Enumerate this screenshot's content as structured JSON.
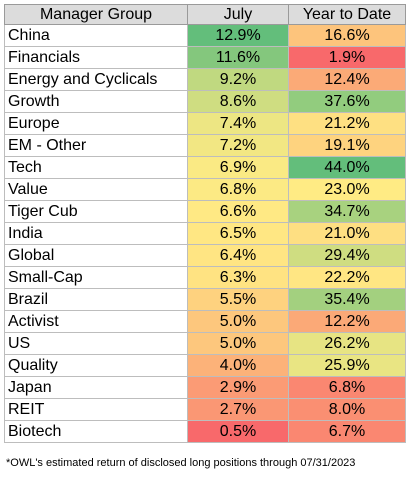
{
  "chart_data": {
    "type": "table",
    "columns": [
      "Manager Group",
      "July",
      "Year to Date"
    ],
    "rows": [
      {
        "group": "China",
        "july": "12.9%",
        "ytd": "16.6%",
        "july_value": 12.9,
        "ytd_value": 16.6
      },
      {
        "group": "Financials",
        "july": "11.6%",
        "ytd": "1.9%",
        "july_value": 11.6,
        "ytd_value": 1.9
      },
      {
        "group": "Energy and Cyclicals",
        "july": "9.2%",
        "ytd": "12.4%",
        "july_value": 9.2,
        "ytd_value": 12.4
      },
      {
        "group": "Growth",
        "july": "8.6%",
        "ytd": "37.6%",
        "july_value": 8.6,
        "ytd_value": 37.6
      },
      {
        "group": "Europe",
        "july": "7.4%",
        "ytd": "21.2%",
        "july_value": 7.4,
        "ytd_value": 21.2
      },
      {
        "group": "EM - Other",
        "july": "7.2%",
        "ytd": "19.1%",
        "july_value": 7.2,
        "ytd_value": 19.1
      },
      {
        "group": "Tech",
        "july": "6.9%",
        "ytd": "44.0%",
        "july_value": 6.9,
        "ytd_value": 44.0
      },
      {
        "group": "Value",
        "july": "6.8%",
        "ytd": "23.0%",
        "july_value": 6.8,
        "ytd_value": 23.0
      },
      {
        "group": "Tiger Cub",
        "july": "6.6%",
        "ytd": "34.7%",
        "july_value": 6.6,
        "ytd_value": 34.7
      },
      {
        "group": "India",
        "july": "6.5%",
        "ytd": "21.0%",
        "july_value": 6.5,
        "ytd_value": 21.0
      },
      {
        "group": "Global",
        "july": "6.4%",
        "ytd": "29.4%",
        "july_value": 6.4,
        "ytd_value": 29.4
      },
      {
        "group": "Small-Cap",
        "july": "6.3%",
        "ytd": "22.2%",
        "july_value": 6.3,
        "ytd_value": 22.2
      },
      {
        "group": "Brazil",
        "july": "5.5%",
        "ytd": "35.4%",
        "july_value": 5.5,
        "ytd_value": 35.4
      },
      {
        "group": "Activist",
        "july": "5.0%",
        "ytd": "12.2%",
        "july_value": 5.0,
        "ytd_value": 12.2
      },
      {
        "group": "US",
        "july": "5.0%",
        "ytd": "26.2%",
        "july_value": 5.0,
        "ytd_value": 26.2
      },
      {
        "group": "Quality",
        "july": "4.0%",
        "ytd": "25.9%",
        "july_value": 4.0,
        "ytd_value": 25.9
      },
      {
        "group": "Japan",
        "july": "2.9%",
        "ytd": "6.8%",
        "july_value": 2.9,
        "ytd_value": 6.8
      },
      {
        "group": "REIT",
        "july": "2.7%",
        "ytd": "8.0%",
        "july_value": 2.7,
        "ytd_value": 8.0
      },
      {
        "group": "Biotech",
        "july": "0.5%",
        "ytd": "6.7%",
        "july_value": 0.5,
        "ytd_value": 6.7
      }
    ],
    "color_scale": {
      "low": "#f8696b",
      "mid": "#ffeb84",
      "high": "#63be7b"
    }
  },
  "footnote": "*OWL's estimated return of disclosed long positions through 07/31/2023"
}
